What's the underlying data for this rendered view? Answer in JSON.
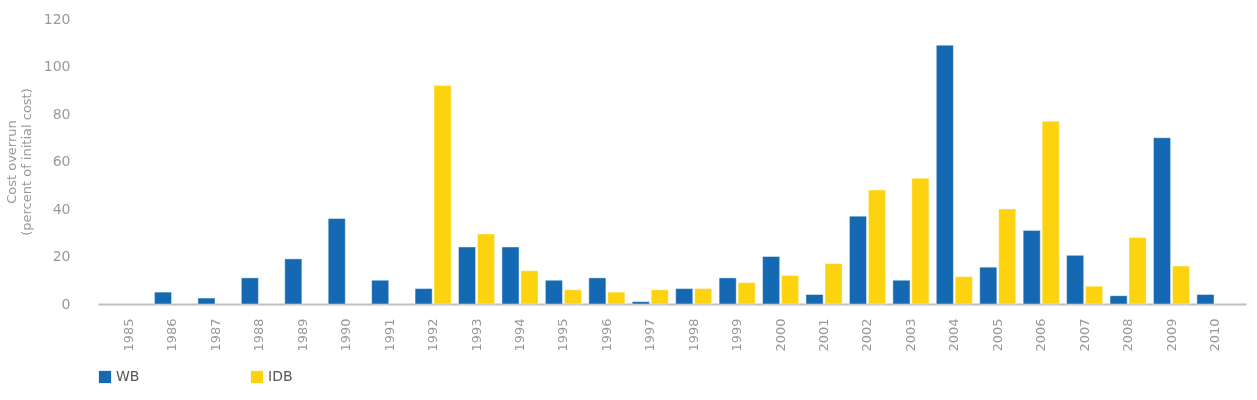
{
  "chart_data": {
    "type": "bar",
    "ylabel": "Cost overrun\n(percent of initial cost)",
    "categories": [
      "1985",
      "1986",
      "1987",
      "1988",
      "1989",
      "1990",
      "1991",
      "1992",
      "1993",
      "1994",
      "1995",
      "1996",
      "1997",
      "1998",
      "1999",
      "2000",
      "2001",
      "2002",
      "2003",
      "2004",
      "2005",
      "2006",
      "2007",
      "2008",
      "2009",
      "2010"
    ],
    "series": [
      {
        "name": "WB",
        "color": "#1569b3",
        "values": [
          null,
          5,
          2.5,
          11,
          19,
          36,
          10,
          6.5,
          24,
          24,
          10,
          11,
          1,
          6.5,
          11,
          20,
          4,
          37,
          10,
          109,
          15.5,
          31,
          20.5,
          3.5,
          70,
          4
        ]
      },
      {
        "name": "IDB",
        "color": "#fdd20e",
        "values": [
          null,
          null,
          null,
          null,
          null,
          null,
          null,
          92,
          29.5,
          14,
          6,
          5,
          6,
          6.5,
          9,
          12,
          17,
          48,
          53,
          11.5,
          40,
          77,
          7.5,
          28,
          16,
          null
        ]
      }
    ],
    "ylim": [
      0,
      120
    ],
    "yticks": [
      0,
      20,
      40,
      60,
      80,
      100,
      120
    ],
    "grid": false,
    "legend": "bottom"
  }
}
